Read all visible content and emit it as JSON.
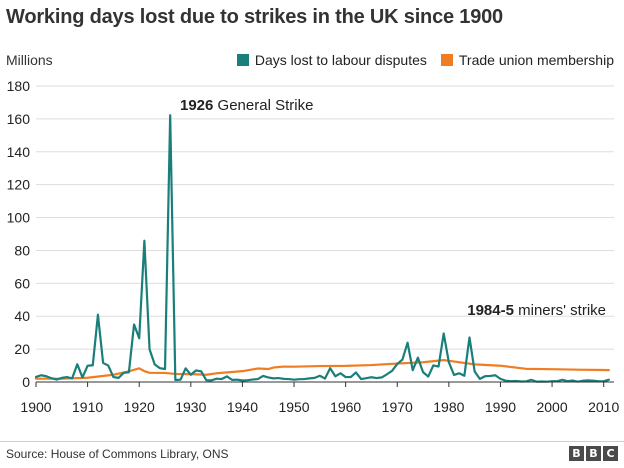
{
  "chart_data": {
    "type": "line",
    "title": "Working days lost due to strikes in the UK since 1900",
    "ylabel": "Millions",
    "xlim": [
      1900,
      2012
    ],
    "ylim": [
      0,
      180
    ],
    "x_ticks": [
      "1900",
      "1910",
      "1920",
      "1930",
      "1940",
      "1950",
      "1960",
      "1970",
      "1980",
      "1990",
      "2000",
      "2010"
    ],
    "y_ticks": [
      "0",
      "20",
      "40",
      "60",
      "80",
      "100",
      "120",
      "140",
      "160",
      "180"
    ],
    "grid": "horizontal",
    "legend_position": "top-right",
    "series": [
      {
        "name": "Days lost to labour disputes",
        "color": "#1a7f7a",
        "points": [
          [
            1900,
            3.1
          ],
          [
            1901,
            4.1
          ],
          [
            1902,
            3.5
          ],
          [
            1903,
            2.3
          ],
          [
            1904,
            1.5
          ],
          [
            1905,
            2.5
          ],
          [
            1906,
            3.0
          ],
          [
            1907,
            2.2
          ],
          [
            1908,
            10.8
          ],
          [
            1909,
            2.8
          ],
          [
            1910,
            9.9
          ],
          [
            1911,
            10.2
          ],
          [
            1912,
            40.9
          ],
          [
            1913,
            11.6
          ],
          [
            1914,
            10.0
          ],
          [
            1915,
            3.0
          ],
          [
            1916,
            2.5
          ],
          [
            1917,
            5.6
          ],
          [
            1918,
            5.9
          ],
          [
            1919,
            35.0
          ],
          [
            1920,
            26.6
          ],
          [
            1921,
            85.9
          ],
          [
            1922,
            19.9
          ],
          [
            1923,
            10.7
          ],
          [
            1924,
            8.4
          ],
          [
            1925,
            7.9
          ],
          [
            1926,
            162.2
          ],
          [
            1927,
            1.2
          ],
          [
            1928,
            1.4
          ],
          [
            1929,
            8.3
          ],
          [
            1930,
            4.4
          ],
          [
            1931,
            7.0
          ],
          [
            1932,
            6.5
          ],
          [
            1933,
            1.1
          ],
          [
            1934,
            1.0
          ],
          [
            1935,
            2.0
          ],
          [
            1936,
            1.8
          ],
          [
            1937,
            3.4
          ],
          [
            1938,
            1.3
          ],
          [
            1939,
            1.4
          ],
          [
            1940,
            0.9
          ],
          [
            1941,
            1.1
          ],
          [
            1942,
            1.5
          ],
          [
            1943,
            1.8
          ],
          [
            1944,
            3.7
          ],
          [
            1945,
            2.8
          ],
          [
            1946,
            2.2
          ],
          [
            1947,
            2.4
          ],
          [
            1948,
            1.9
          ],
          [
            1949,
            1.8
          ],
          [
            1950,
            1.4
          ],
          [
            1951,
            1.7
          ],
          [
            1952,
            1.8
          ],
          [
            1953,
            2.2
          ],
          [
            1954,
            2.5
          ],
          [
            1955,
            3.8
          ],
          [
            1956,
            2.1
          ],
          [
            1957,
            8.4
          ],
          [
            1958,
            3.5
          ],
          [
            1959,
            5.3
          ],
          [
            1960,
            3.0
          ],
          [
            1961,
            3.0
          ],
          [
            1962,
            5.8
          ],
          [
            1963,
            1.8
          ],
          [
            1964,
            2.3
          ],
          [
            1965,
            2.9
          ],
          [
            1966,
            2.4
          ],
          [
            1967,
            2.8
          ],
          [
            1968,
            4.7
          ],
          [
            1969,
            6.8
          ],
          [
            1970,
            11.0
          ],
          [
            1971,
            13.6
          ],
          [
            1972,
            23.9
          ],
          [
            1973,
            7.2
          ],
          [
            1974,
            14.8
          ],
          [
            1975,
            6.0
          ],
          [
            1976,
            3.3
          ],
          [
            1977,
            10.1
          ],
          [
            1978,
            9.4
          ],
          [
            1979,
            29.5
          ],
          [
            1980,
            12.0
          ],
          [
            1981,
            4.3
          ],
          [
            1982,
            5.3
          ],
          [
            1983,
            3.8
          ],
          [
            1984,
            27.1
          ],
          [
            1985,
            6.4
          ],
          [
            1986,
            1.9
          ],
          [
            1987,
            3.5
          ],
          [
            1988,
            3.7
          ],
          [
            1989,
            4.1
          ],
          [
            1990,
            1.9
          ],
          [
            1991,
            0.8
          ],
          [
            1992,
            0.5
          ],
          [
            1993,
            0.6
          ],
          [
            1994,
            0.3
          ],
          [
            1995,
            0.4
          ],
          [
            1996,
            1.3
          ],
          [
            1997,
            0.2
          ],
          [
            1998,
            0.3
          ],
          [
            1999,
            0.2
          ],
          [
            2000,
            0.5
          ],
          [
            2001,
            0.5
          ],
          [
            2002,
            1.3
          ],
          [
            2003,
            0.5
          ],
          [
            2004,
            0.9
          ],
          [
            2005,
            0.2
          ],
          [
            2006,
            0.8
          ],
          [
            2007,
            1.0
          ],
          [
            2008,
            0.8
          ],
          [
            2009,
            0.5
          ],
          [
            2010,
            0.4
          ],
          [
            2011,
            1.4
          ]
        ]
      },
      {
        "name": "Trade union membership",
        "color": "#f07d22",
        "points": [
          [
            1900,
            2.0
          ],
          [
            1905,
            2.0
          ],
          [
            1910,
            2.6
          ],
          [
            1915,
            4.4
          ],
          [
            1918,
            6.5
          ],
          [
            1920,
            8.3
          ],
          [
            1921,
            6.6
          ],
          [
            1922,
            5.6
          ],
          [
            1925,
            5.5
          ],
          [
            1927,
            4.9
          ],
          [
            1930,
            4.8
          ],
          [
            1933,
            4.4
          ],
          [
            1935,
            5.3
          ],
          [
            1938,
            6.1
          ],
          [
            1940,
            6.6
          ],
          [
            1943,
            8.2
          ],
          [
            1945,
            7.9
          ],
          [
            1946,
            8.8
          ],
          [
            1948,
            9.4
          ],
          [
            1950,
            9.3
          ],
          [
            1955,
            9.7
          ],
          [
            1960,
            9.8
          ],
          [
            1965,
            10.3
          ],
          [
            1970,
            11.2
          ],
          [
            1975,
            12.0
          ],
          [
            1979,
            13.3
          ],
          [
            1980,
            12.9
          ],
          [
            1985,
            10.7
          ],
          [
            1990,
            9.9
          ],
          [
            1995,
            8.0
          ],
          [
            2000,
            7.8
          ],
          [
            2005,
            7.5
          ],
          [
            2010,
            7.3
          ],
          [
            2011,
            7.2
          ]
        ]
      }
    ],
    "annotations": [
      {
        "bold": "1926",
        "text": " General Strike",
        "x": 1926,
        "y": 162
      },
      {
        "bold": "1984-5",
        "text": " miners' strike",
        "x": 1984,
        "y": 27
      }
    ]
  },
  "source": "Source: House of Commons Library, ONS",
  "logo": [
    "B",
    "B",
    "C"
  ]
}
